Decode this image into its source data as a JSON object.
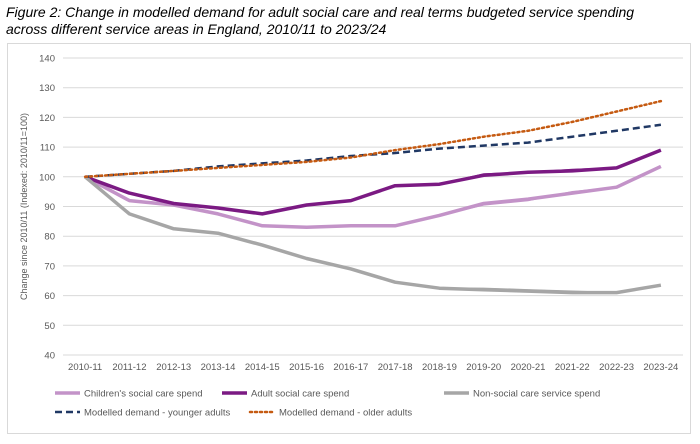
{
  "figure": {
    "caption_line1": "Figure 2: Change in modelled demand for adult social care and real terms budgeted service spending",
    "caption_line2": "across different service areas in England, 2010/11 to 2023/24"
  },
  "chart_data": {
    "type": "line",
    "title": "Figure 2: Change in modelled demand for adult social care and real terms budgeted service spending across different service areas in England, 2010/11 to 2023/24",
    "xlabel": "",
    "ylabel": "Change since 2010/11 (Indexed: 2010/11=100)",
    "ylim": [
      40,
      140
    ],
    "yticks": [
      40,
      50,
      60,
      70,
      80,
      90,
      100,
      110,
      120,
      130,
      140
    ],
    "grid": "horizontal",
    "legend": "bottom",
    "categories": [
      "2010-11",
      "2011-12",
      "2012-13",
      "2013-14",
      "2014-15",
      "2015-16",
      "2016-17",
      "2017-18",
      "2018-19",
      "2019-20",
      "2020-21",
      "2021-22",
      "2022-23",
      "2023-24"
    ],
    "series": [
      {
        "name": "Children's social care spend",
        "color": "#c393c8",
        "style": "solid",
        "width": 3.5,
        "values": [
          100,
          92,
          90.5,
          87.5,
          83.5,
          83,
          83.5,
          83.5,
          87,
          91,
          92.5,
          94.5,
          96.5,
          103.5
        ],
        "alt_values": [
          null,
          null,
          null,
          null,
          null,
          null,
          null,
          null,
          null,
          90.5,
          92,
          95,
          null,
          null
        ]
      },
      {
        "name": "Adult social care spend",
        "color": "#7b1a83",
        "style": "solid",
        "width": 3.5,
        "values": [
          100,
          94.5,
          91,
          89.5,
          87.5,
          90.5,
          92,
          97,
          97.5,
          100.5,
          101.5,
          102,
          103,
          109
        ],
        "alt_values": [
          null,
          null,
          null,
          null,
          null,
          null,
          null,
          null,
          null,
          101,
          101.5,
          102.5,
          null,
          null
        ]
      },
      {
        "name": "Non-social care service spend",
        "color": "#a6a6a6",
        "style": "solid",
        "width": 3.5,
        "values": [
          100,
          87.5,
          82.5,
          81,
          77,
          72.5,
          69,
          64.5,
          62.5,
          62,
          61.5,
          61,
          61,
          63.5
        ],
        "alt_values": [
          null,
          null,
          null,
          null,
          null,
          null,
          null,
          null,
          null,
          62.5,
          62,
          61.5,
          null,
          null
        ]
      },
      {
        "name": "Modelled demand - younger adults",
        "color": "#203864",
        "style": "dashed",
        "width": 2.5,
        "values": [
          100,
          101,
          102,
          103.5,
          104.5,
          105.5,
          107,
          108,
          109.5,
          110.5,
          111.5,
          113.5,
          115.5,
          117.5
        ]
      },
      {
        "name": "Modelled demand - older adults",
        "color": "#c55a11",
        "style": "dotted",
        "width": 2.5,
        "values": [
          100,
          101,
          102,
          103,
          104,
          105,
          106.5,
          109,
          111,
          113.5,
          115.5,
          118.5,
          122,
          125.5
        ]
      }
    ]
  }
}
